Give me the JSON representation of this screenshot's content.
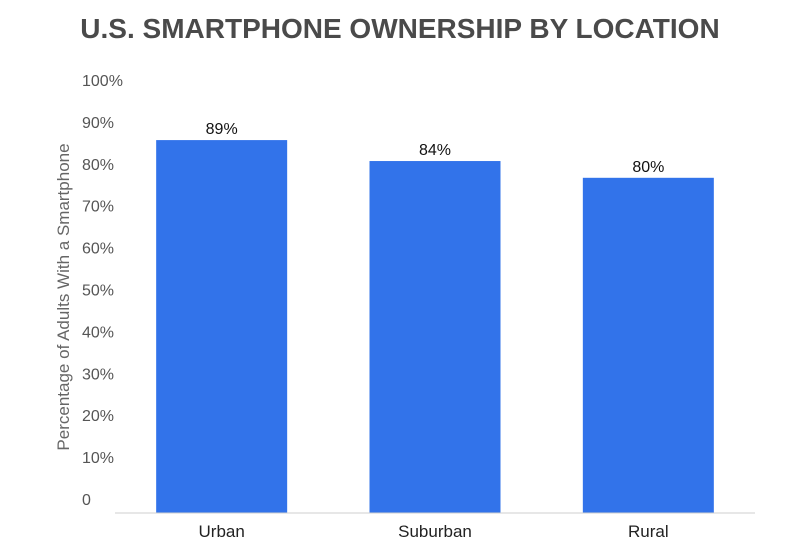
{
  "chart_data": {
    "type": "bar",
    "title": "U.S. SMARTPHONE OWNERSHIP BY LOCATION",
    "xlabel": "",
    "ylabel": "Percentage of Adults With a Smartphone",
    "categories": [
      "Urban",
      "Suburban",
      "Rural"
    ],
    "values": [
      89,
      84,
      80
    ],
    "value_labels": [
      "89%",
      "84%",
      "80%"
    ],
    "yticks": [
      0,
      10,
      20,
      30,
      40,
      50,
      60,
      70,
      80,
      90,
      100
    ],
    "ytick_labels": [
      "0",
      "10%",
      "20%",
      "30%",
      "40%",
      "50%",
      "60%",
      "70%",
      "80%",
      "90%",
      "100%"
    ],
    "ylim": [
      0,
      100
    ],
    "grid": false,
    "bar_color": "#3273ea"
  }
}
